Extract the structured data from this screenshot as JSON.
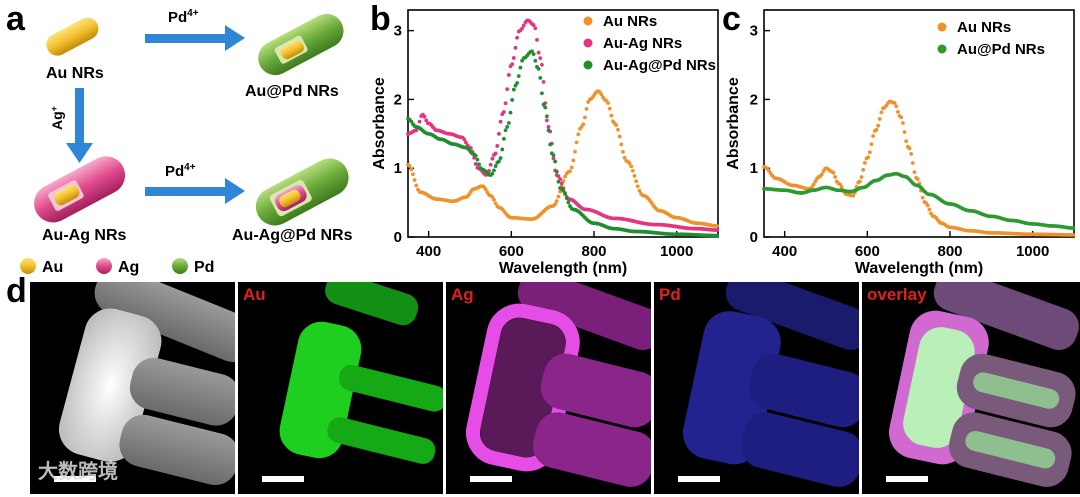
{
  "panels": {
    "a": "a",
    "b": "b",
    "c": "c",
    "d": "d"
  },
  "schematic": {
    "au_nrs": "Au NRs",
    "au_pd_nrs": "Au@Pd NRs",
    "au_ag_nrs": "Au-Ag NRs",
    "au_ag_pd_nrs": "Au-Ag@Pd NRs",
    "pd_reagent": "Pd",
    "pd_charge": "4+",
    "ag_reagent": "Ag",
    "ag_charge": "+",
    "legend": [
      "Au",
      "Ag",
      "Pd"
    ],
    "colors": {
      "au": "#f2c12e",
      "ag": "#e04a8c",
      "pd": "#6aaa3a",
      "arrow": "#2f86d6"
    }
  },
  "chart_data": [
    {
      "type": "scatter",
      "panel": "b",
      "xlabel": "Wavelength (nm)",
      "ylabel": "Absorbance",
      "xlim": [
        350,
        1100
      ],
      "ylim": [
        0,
        3.3
      ],
      "xticks": [
        400,
        600,
        800,
        1000
      ],
      "yticks": [
        0,
        1,
        2,
        3
      ],
      "legend_position": "top-right",
      "series": [
        {
          "name": "Au NRs",
          "color": "#f0922b",
          "x": [
            350,
            380,
            420,
            460,
            490,
            510,
            530,
            550,
            570,
            600,
            650,
            700,
            740,
            770,
            790,
            810,
            830,
            850,
            880,
            920,
            960,
            1000,
            1050,
            1100
          ],
          "y": [
            1.05,
            0.65,
            0.55,
            0.52,
            0.58,
            0.7,
            0.74,
            0.6,
            0.43,
            0.28,
            0.26,
            0.45,
            0.95,
            1.6,
            2.0,
            2.12,
            1.98,
            1.65,
            1.1,
            0.6,
            0.38,
            0.28,
            0.2,
            0.16
          ]
        },
        {
          "name": "Au-Ag NRs",
          "color": "#e6357f",
          "x": [
            350,
            370,
            385,
            400,
            420,
            450,
            480,
            500,
            520,
            540,
            560,
            580,
            600,
            620,
            640,
            655,
            670,
            690,
            710,
            740,
            780,
            850,
            950,
            1050,
            1100
          ],
          "y": [
            1.5,
            1.55,
            1.78,
            1.65,
            1.55,
            1.5,
            1.45,
            1.3,
            1.0,
            0.9,
            1.2,
            1.8,
            2.5,
            3.0,
            3.15,
            3.08,
            2.6,
            1.6,
            0.9,
            0.55,
            0.4,
            0.27,
            0.18,
            0.12,
            0.1
          ]
        },
        {
          "name": "Au-Ag@Pd NRs",
          "color": "#1f8f2e",
          "x": [
            350,
            370,
            400,
            430,
            460,
            490,
            510,
            530,
            550,
            570,
            590,
            610,
            630,
            650,
            665,
            680,
            700,
            720,
            750,
            800,
            850,
            900,
            1000,
            1100
          ],
          "y": [
            1.72,
            1.6,
            1.5,
            1.42,
            1.35,
            1.3,
            1.2,
            0.98,
            0.9,
            1.1,
            1.6,
            2.2,
            2.6,
            2.7,
            2.45,
            1.9,
            1.2,
            0.7,
            0.4,
            0.2,
            0.12,
            0.08,
            0.04,
            0.02
          ]
        }
      ]
    },
    {
      "type": "scatter",
      "panel": "c",
      "xlabel": "Wavelength (nm)",
      "ylabel": "Absorbance",
      "xlim": [
        350,
        1100
      ],
      "ylim": [
        0,
        3.3
      ],
      "xticks": [
        400,
        600,
        800,
        1000
      ],
      "yticks": [
        0,
        1,
        2,
        3
      ],
      "legend_position": "top-right",
      "series": [
        {
          "name": "Au NRs",
          "color": "#f0922b",
          "x": [
            350,
            380,
            420,
            460,
            485,
            500,
            515,
            530,
            550,
            565,
            580,
            600,
            620,
            640,
            655,
            665,
            680,
            700,
            720,
            740,
            760,
            780,
            800,
            850,
            900,
            1000,
            1100
          ],
          "y": [
            1.02,
            0.85,
            0.75,
            0.7,
            0.88,
            1.0,
            0.95,
            0.78,
            0.62,
            0.6,
            0.8,
            1.15,
            1.55,
            1.88,
            1.97,
            1.95,
            1.75,
            1.3,
            0.85,
            0.5,
            0.3,
            0.2,
            0.14,
            0.09,
            0.06,
            0.04,
            0.03
          ]
        },
        {
          "name": "Au@Pd NRs",
          "color": "#2e9a2e",
          "x": [
            350,
            400,
            440,
            470,
            500,
            530,
            560,
            590,
            620,
            650,
            670,
            690,
            720,
            750,
            800,
            850,
            900,
            950,
            1000,
            1050,
            1100
          ],
          "y": [
            0.7,
            0.68,
            0.64,
            0.68,
            0.72,
            0.68,
            0.66,
            0.72,
            0.82,
            0.9,
            0.92,
            0.88,
            0.75,
            0.62,
            0.48,
            0.38,
            0.3,
            0.24,
            0.19,
            0.16,
            0.13
          ]
        }
      ]
    }
  ],
  "tem": {
    "labels": [
      "",
      "Au",
      "Ag",
      "Pd",
      "overlay"
    ],
    "watermark": "大数跨境"
  }
}
